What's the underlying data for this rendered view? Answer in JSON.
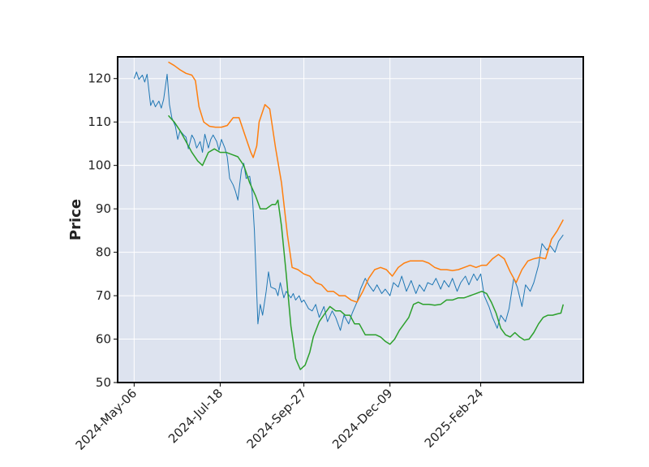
{
  "chart_data": {
    "type": "line",
    "title": "",
    "xlabel": "",
    "ylabel": "Price",
    "ylim": [
      50,
      125
    ],
    "yticks": [
      50,
      60,
      70,
      80,
      90,
      100,
      110,
      120
    ],
    "xlim": [
      "2024-04-22",
      "2025-05-22"
    ],
    "xticks": [
      "2024-May-06",
      "2024-Jul-18",
      "2024-Sep-27",
      "2024-Dec-09",
      "2025-Feb-24"
    ],
    "xtick_dates": [
      "2024-05-06",
      "2024-07-18",
      "2024-09-27",
      "2024-12-09",
      "2025-02-24"
    ],
    "grid": true,
    "legend": "none",
    "background": "#dde3ef",
    "series": [
      {
        "color": "#1f77b4",
        "points": [
          [
            "2024-05-06",
            120.0
          ],
          [
            "2024-05-08",
            121.5
          ],
          [
            "2024-05-10",
            119.8
          ],
          [
            "2024-05-13",
            120.8
          ],
          [
            "2024-05-15",
            119.2
          ],
          [
            "2024-05-17",
            121.0
          ],
          [
            "2024-05-20",
            113.8
          ],
          [
            "2024-05-22",
            115.0
          ],
          [
            "2024-05-24",
            113.5
          ],
          [
            "2024-05-27",
            114.8
          ],
          [
            "2024-05-29",
            113.2
          ],
          [
            "2024-05-31",
            115.2
          ],
          [
            "2024-06-03",
            121.0
          ],
          [
            "2024-06-05",
            114.0
          ],
          [
            "2024-06-07",
            111.0
          ],
          [
            "2024-06-10",
            109.0
          ],
          [
            "2024-06-12",
            106.0
          ],
          [
            "2024-06-14",
            108.0
          ],
          [
            "2024-06-17",
            107.0
          ],
          [
            "2024-06-19",
            106.5
          ],
          [
            "2024-06-21",
            103.8
          ],
          [
            "2024-06-24",
            107.0
          ],
          [
            "2024-06-26",
            106.0
          ],
          [
            "2024-06-28",
            104.0
          ],
          [
            "2024-07-01",
            105.5
          ],
          [
            "2024-07-03",
            103.0
          ],
          [
            "2024-07-05",
            107.2
          ],
          [
            "2024-07-08",
            104.0
          ],
          [
            "2024-07-10",
            106.0
          ],
          [
            "2024-07-12",
            107.0
          ],
          [
            "2024-07-15",
            105.5
          ],
          [
            "2024-07-17",
            103.5
          ],
          [
            "2024-07-19",
            106.0
          ],
          [
            "2024-07-22",
            104.0
          ],
          [
            "2024-07-24",
            102.0
          ],
          [
            "2024-07-26",
            97.0
          ],
          [
            "2024-07-29",
            95.5
          ],
          [
            "2024-07-31",
            94.0
          ],
          [
            "2024-08-02",
            92.0
          ],
          [
            "2024-08-05",
            99.0
          ],
          [
            "2024-08-07",
            100.5
          ],
          [
            "2024-08-09",
            97.0
          ],
          [
            "2024-08-12",
            97.5
          ],
          [
            "2024-08-14",
            94.0
          ],
          [
            "2024-08-16",
            85.0
          ],
          [
            "2024-08-19",
            63.5
          ],
          [
            "2024-08-21",
            68.0
          ],
          [
            "2024-08-23",
            65.5
          ],
          [
            "2024-08-26",
            71.0
          ],
          [
            "2024-08-28",
            75.5
          ],
          [
            "2024-08-30",
            72.0
          ],
          [
            "2024-09-03",
            71.5
          ],
          [
            "2024-09-05",
            70.0
          ],
          [
            "2024-09-07",
            73.0
          ],
          [
            "2024-09-10",
            69.5
          ],
          [
            "2024-09-12",
            71.0
          ],
          [
            "2024-09-16",
            69.5
          ],
          [
            "2024-09-18",
            70.5
          ],
          [
            "2024-09-20",
            69.0
          ],
          [
            "2024-09-23",
            70.0
          ],
          [
            "2024-09-25",
            68.5
          ],
          [
            "2024-09-27",
            69.0
          ],
          [
            "2024-10-01",
            67.0
          ],
          [
            "2024-10-04",
            66.5
          ],
          [
            "2024-10-07",
            68.0
          ],
          [
            "2024-10-10",
            65.0
          ],
          [
            "2024-10-14",
            67.5
          ],
          [
            "2024-10-17",
            64.0
          ],
          [
            "2024-10-21",
            66.5
          ],
          [
            "2024-10-24",
            65.0
          ],
          [
            "2024-10-28",
            62.0
          ],
          [
            "2024-10-31",
            65.5
          ],
          [
            "2024-11-04",
            63.5
          ],
          [
            "2024-11-07",
            66.0
          ],
          [
            "2024-11-11",
            68.5
          ],
          [
            "2024-11-14",
            71.5
          ],
          [
            "2024-11-18",
            74.0
          ],
          [
            "2024-11-21",
            72.5
          ],
          [
            "2024-11-25",
            71.0
          ],
          [
            "2024-11-28",
            72.5
          ],
          [
            "2024-12-02",
            70.5
          ],
          [
            "2024-12-05",
            71.5
          ],
          [
            "2024-12-09",
            70.0
          ],
          [
            "2024-12-12",
            73.0
          ],
          [
            "2024-12-16",
            72.0
          ],
          [
            "2024-12-19",
            74.5
          ],
          [
            "2024-12-23",
            71.0
          ],
          [
            "2024-12-27",
            73.5
          ],
          [
            "2024-12-31",
            70.5
          ],
          [
            "2025-01-03",
            72.5
          ],
          [
            "2025-01-07",
            71.0
          ],
          [
            "2025-01-10",
            73.0
          ],
          [
            "2025-01-14",
            72.5
          ],
          [
            "2025-01-17",
            74.0
          ],
          [
            "2025-01-21",
            71.5
          ],
          [
            "2025-01-24",
            73.5
          ],
          [
            "2025-01-28",
            72.0
          ],
          [
            "2025-01-31",
            74.0
          ],
          [
            "2025-02-04",
            71.0
          ],
          [
            "2025-02-07",
            73.0
          ],
          [
            "2025-02-11",
            74.5
          ],
          [
            "2025-02-14",
            72.5
          ],
          [
            "2025-02-18",
            75.0
          ],
          [
            "2025-02-21",
            73.5
          ],
          [
            "2025-02-24",
            75.0
          ],
          [
            "2025-02-27",
            70.0
          ],
          [
            "2025-03-03",
            67.5
          ],
          [
            "2025-03-06",
            65.0
          ],
          [
            "2025-03-10",
            62.5
          ],
          [
            "2025-03-13",
            65.5
          ],
          [
            "2025-03-17",
            64.0
          ],
          [
            "2025-03-20",
            67.0
          ],
          [
            "2025-03-24",
            74.0
          ],
          [
            "2025-03-27",
            72.0
          ],
          [
            "2025-03-31",
            67.5
          ],
          [
            "2025-04-03",
            72.5
          ],
          [
            "2025-04-07",
            71.0
          ],
          [
            "2025-04-10",
            73.0
          ],
          [
            "2025-04-14",
            77.0
          ],
          [
            "2025-04-17",
            82.0
          ],
          [
            "2025-04-21",
            80.5
          ],
          [
            "2025-04-24",
            81.5
          ],
          [
            "2025-04-28",
            80.0
          ],
          [
            "2025-05-01",
            82.5
          ],
          [
            "2025-05-05",
            84.0
          ]
        ]
      },
      {
        "color": "#ff7f0e",
        "points": [
          [
            "2024-06-04",
            123.8
          ],
          [
            "2024-06-09",
            123.0
          ],
          [
            "2024-06-14",
            122.0
          ],
          [
            "2024-06-19",
            121.2
          ],
          [
            "2024-06-24",
            120.8
          ],
          [
            "2024-06-27",
            119.5
          ],
          [
            "2024-06-30",
            113.5
          ],
          [
            "2024-07-04",
            110.0
          ],
          [
            "2024-07-09",
            109.0
          ],
          [
            "2024-07-14",
            108.8
          ],
          [
            "2024-07-19",
            108.8
          ],
          [
            "2024-07-24",
            109.2
          ],
          [
            "2024-07-29",
            111.0
          ],
          [
            "2024-08-03",
            111.0
          ],
          [
            "2024-08-08",
            107.0
          ],
          [
            "2024-08-13",
            103.0
          ],
          [
            "2024-08-15",
            101.8
          ],
          [
            "2024-08-18",
            104.5
          ],
          [
            "2024-08-20",
            110.0
          ],
          [
            "2024-08-25",
            114.0
          ],
          [
            "2024-08-29",
            113.0
          ],
          [
            "2024-09-03",
            104.0
          ],
          [
            "2024-09-08",
            96.0
          ],
          [
            "2024-09-13",
            84.0
          ],
          [
            "2024-09-17",
            76.5
          ],
          [
            "2024-09-22",
            76.0
          ],
          [
            "2024-09-27",
            75.0
          ],
          [
            "2024-10-02",
            74.5
          ],
          [
            "2024-10-07",
            73.0
          ],
          [
            "2024-10-12",
            72.5
          ],
          [
            "2024-10-17",
            71.0
          ],
          [
            "2024-10-22",
            71.0
          ],
          [
            "2024-10-27",
            70.0
          ],
          [
            "2024-11-01",
            70.0
          ],
          [
            "2024-11-06",
            69.0
          ],
          [
            "2024-11-11",
            68.5
          ],
          [
            "2024-11-16",
            71.0
          ],
          [
            "2024-11-21",
            74.0
          ],
          [
            "2024-11-26",
            76.0
          ],
          [
            "2024-12-01",
            76.5
          ],
          [
            "2024-12-06",
            76.0
          ],
          [
            "2024-12-11",
            74.5
          ],
          [
            "2024-12-16",
            76.5
          ],
          [
            "2024-12-21",
            77.5
          ],
          [
            "2024-12-26",
            78.0
          ],
          [
            "2025-01-01",
            78.0
          ],
          [
            "2025-01-06",
            78.0
          ],
          [
            "2025-01-11",
            77.5
          ],
          [
            "2025-01-16",
            76.5
          ],
          [
            "2025-01-21",
            76.0
          ],
          [
            "2025-01-26",
            76.0
          ],
          [
            "2025-01-31",
            75.8
          ],
          [
            "2025-02-05",
            76.0
          ],
          [
            "2025-02-10",
            76.5
          ],
          [
            "2025-02-15",
            77.0
          ],
          [
            "2025-02-20",
            76.5
          ],
          [
            "2025-02-25",
            77.0
          ],
          [
            "2025-03-01",
            77.0
          ],
          [
            "2025-03-06",
            78.5
          ],
          [
            "2025-03-11",
            79.5
          ],
          [
            "2025-03-16",
            78.5
          ],
          [
            "2025-03-21",
            75.5
          ],
          [
            "2025-03-26",
            73.0
          ],
          [
            "2025-03-31",
            76.0
          ],
          [
            "2025-04-05",
            78.0
          ],
          [
            "2025-04-10",
            78.5
          ],
          [
            "2025-04-15",
            78.8
          ],
          [
            "2025-04-20",
            78.5
          ],
          [
            "2025-04-25",
            83.0
          ],
          [
            "2025-04-30",
            85.0
          ],
          [
            "2025-05-05",
            87.5
          ]
        ]
      },
      {
        "color": "#2ca02c",
        "points": [
          [
            "2024-06-04",
            111.5
          ],
          [
            "2024-06-09",
            110.0
          ],
          [
            "2024-06-14",
            108.0
          ],
          [
            "2024-06-19",
            105.5
          ],
          [
            "2024-06-24",
            103.0
          ],
          [
            "2024-06-29",
            101.0
          ],
          [
            "2024-07-03",
            100.0
          ],
          [
            "2024-07-08",
            103.0
          ],
          [
            "2024-07-13",
            103.8
          ],
          [
            "2024-07-18",
            103.0
          ],
          [
            "2024-07-23",
            103.0
          ],
          [
            "2024-07-28",
            102.5
          ],
          [
            "2024-08-02",
            102.0
          ],
          [
            "2024-08-07",
            100.0
          ],
          [
            "2024-08-12",
            96.0
          ],
          [
            "2024-08-17",
            93.0
          ],
          [
            "2024-08-21",
            90.0
          ],
          [
            "2024-08-26",
            90.0
          ],
          [
            "2024-08-31",
            91.0
          ],
          [
            "2024-09-03",
            91.0
          ],
          [
            "2024-09-05",
            92.0
          ],
          [
            "2024-09-08",
            86.0
          ],
          [
            "2024-09-12",
            75.0
          ],
          [
            "2024-09-16",
            63.0
          ],
          [
            "2024-09-20",
            55.5
          ],
          [
            "2024-09-24",
            53.0
          ],
          [
            "2024-09-28",
            54.0
          ],
          [
            "2024-10-02",
            57.0
          ],
          [
            "2024-10-05",
            60.5
          ],
          [
            "2024-10-10",
            64.0
          ],
          [
            "2024-10-15",
            66.0
          ],
          [
            "2024-10-19",
            67.5
          ],
          [
            "2024-10-24",
            66.5
          ],
          [
            "2024-10-28",
            66.5
          ],
          [
            "2024-11-01",
            65.5
          ],
          [
            "2024-11-05",
            65.5
          ],
          [
            "2024-11-09",
            63.5
          ],
          [
            "2024-11-13",
            63.5
          ],
          [
            "2024-11-18",
            61.0
          ],
          [
            "2024-11-22",
            61.0
          ],
          [
            "2024-11-27",
            61.0
          ],
          [
            "2024-12-01",
            60.5
          ],
          [
            "2024-12-05",
            59.5
          ],
          [
            "2024-12-09",
            58.8
          ],
          [
            "2024-12-13",
            60.0
          ],
          [
            "2024-12-17",
            62.0
          ],
          [
            "2024-12-21",
            63.5
          ],
          [
            "2024-12-25",
            65.0
          ],
          [
            "2024-12-29",
            68.0
          ],
          [
            "2025-01-02",
            68.5
          ],
          [
            "2025-01-06",
            68.0
          ],
          [
            "2025-01-11",
            68.0
          ],
          [
            "2025-01-16",
            67.8
          ],
          [
            "2025-01-21",
            68.0
          ],
          [
            "2025-01-26",
            69.0
          ],
          [
            "2025-01-31",
            69.0
          ],
          [
            "2025-02-05",
            69.5
          ],
          [
            "2025-02-10",
            69.5
          ],
          [
            "2025-02-15",
            70.0
          ],
          [
            "2025-02-20",
            70.5
          ],
          [
            "2025-02-25",
            71.0
          ],
          [
            "2025-03-01",
            70.5
          ],
          [
            "2025-03-05",
            68.5
          ],
          [
            "2025-03-09",
            66.0
          ],
          [
            "2025-03-13",
            62.5
          ],
          [
            "2025-03-17",
            61.0
          ],
          [
            "2025-03-21",
            60.5
          ],
          [
            "2025-03-25",
            61.5
          ],
          [
            "2025-03-29",
            60.5
          ],
          [
            "2025-04-02",
            59.8
          ],
          [
            "2025-04-06",
            60.0
          ],
          [
            "2025-04-10",
            61.5
          ],
          [
            "2025-04-14",
            63.5
          ],
          [
            "2025-04-18",
            65.0
          ],
          [
            "2025-04-22",
            65.5
          ],
          [
            "2025-04-26",
            65.5
          ],
          [
            "2025-04-30",
            65.8
          ],
          [
            "2025-05-03",
            66.0
          ],
          [
            "2025-05-05",
            68.0
          ]
        ]
      }
    ]
  }
}
